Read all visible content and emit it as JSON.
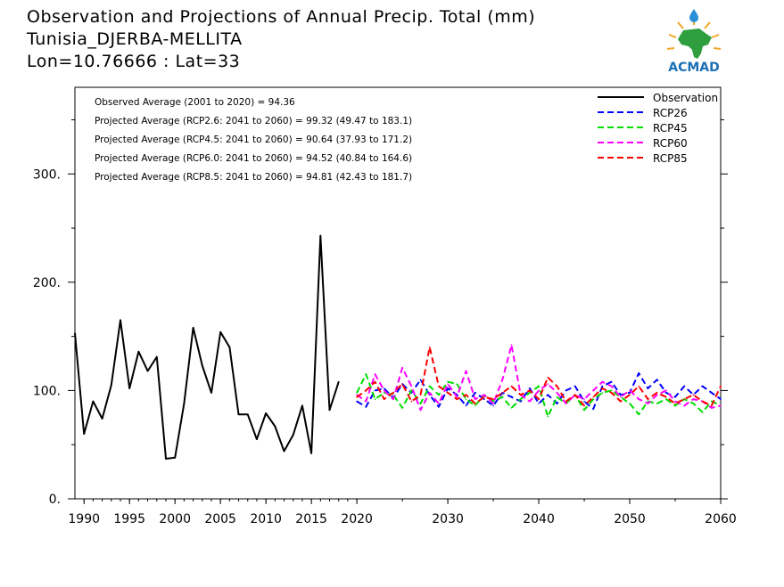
{
  "header": {
    "title": "Observation and Projections of Annual Precip. Total (mm)",
    "station": "Tunisia_DJERBA-MELLITA",
    "coords": "Lon=10.76666 : Lat=33"
  },
  "logo": {
    "text": "ACMAD",
    "colors": {
      "africa": "#2e9e3f",
      "sun": "#f2a623",
      "text": "#1b6fb3",
      "drop": "#2a8fd6"
    }
  },
  "annotations": [
    "Observed Average (2001 to 2020) = 94.36",
    "Projected Average (RCP2.6: 2041 to 2060) = 99.32 (49.47 to 183.1)",
    "Projected Average (RCP4.5: 2041 to 2060) = 90.64 (37.93 to 171.2)",
    "Projected Average (RCP6.0: 2041 to 2060) = 94.52 (40.84 to 164.6)",
    "Projected Average (RCP8.5: 2041 to 2060) = 94.81 (42.43 to 181.7)"
  ],
  "chart_data": {
    "type": "line",
    "xlim": [
      1989,
      2060
    ],
    "ylim": [
      0,
      380
    ],
    "x_ticks": [
      "1990",
      "1995",
      "2000",
      "2005",
      "2010",
      "2015",
      "2020",
      "2030",
      "2040",
      "2050",
      "2060"
    ],
    "y_ticks": [
      "0.",
      "100.",
      "200.",
      "300."
    ],
    "legend_position": "top-right",
    "grid": false,
    "series": [
      {
        "name": "Observation",
        "color": "#000000",
        "dashed": false,
        "x": [
          1989,
          1990,
          1991,
          1992,
          1993,
          1994,
          1995,
          1996,
          1997,
          1998,
          1999,
          2000,
          2001,
          2002,
          2003,
          2004,
          2005,
          2006,
          2007,
          2008,
          2009,
          2010,
          2011,
          2012,
          2013,
          2014,
          2015,
          2016,
          2017,
          2018,
          2019
        ],
        "values": [
          153,
          60,
          90,
          74,
          105,
          165,
          102,
          136,
          118,
          131,
          37,
          38,
          88,
          158,
          123,
          98,
          154,
          140,
          78,
          78,
          55,
          79,
          67,
          44,
          59,
          86,
          42,
          243,
          82,
          108,
          null
        ]
      },
      {
        "name": "RCP26",
        "color": "#0000ff",
        "dashed": true,
        "x": [
          2020,
          2021,
          2022,
          2023,
          2024,
          2025,
          2026,
          2027,
          2028,
          2029,
          2030,
          2031,
          2032,
          2033,
          2034,
          2035,
          2036,
          2037,
          2038,
          2039,
          2040,
          2041,
          2042,
          2043,
          2044,
          2045,
          2046,
          2047,
          2048,
          2049,
          2050,
          2051,
          2052,
          2053,
          2054,
          2055,
          2056,
          2057,
          2058,
          2059,
          2060
        ],
        "values": [
          90,
          85,
          100,
          102,
          93,
          106,
          98,
          110,
          96,
          85,
          102,
          96,
          86,
          98,
          92,
          86,
          98,
          94,
          90,
          102,
          88,
          96,
          88,
          100,
          104,
          90,
          83,
          104,
          108,
          96,
          98,
          116,
          102,
          110,
          98,
          94,
          104,
          96,
          104,
          98,
          92
        ]
      },
      {
        "name": "RCP45",
        "color": "#00dd00",
        "dashed": true,
        "x": [
          2020,
          2021,
          2022,
          2023,
          2024,
          2025,
          2026,
          2027,
          2028,
          2029,
          2030,
          2031,
          2032,
          2033,
          2034,
          2035,
          2036,
          2037,
          2038,
          2039,
          2040,
          2041,
          2042,
          2043,
          2044,
          2045,
          2046,
          2047,
          2048,
          2049,
          2050,
          2051,
          2052,
          2053,
          2054,
          2055,
          2056,
          2057,
          2058,
          2059,
          2060
        ],
        "values": [
          98,
          115,
          92,
          98,
          96,
          84,
          100,
          88,
          104,
          96,
          108,
          106,
          92,
          86,
          96,
          90,
          94,
          84,
          92,
          98,
          104,
          76,
          94,
          88,
          96,
          82,
          92,
          98,
          100,
          94,
          88,
          78,
          90,
          88,
          92,
          86,
          92,
          88,
          80,
          90,
          86
        ]
      },
      {
        "name": "RCP60",
        "color": "#ff00ff",
        "dashed": true,
        "x": [
          2020,
          2021,
          2022,
          2023,
          2024,
          2025,
          2026,
          2027,
          2028,
          2029,
          2030,
          2031,
          2032,
          2033,
          2034,
          2035,
          2036,
          2037,
          2038,
          2039,
          2040,
          2041,
          2042,
          2043,
          2044,
          2045,
          2046,
          2047,
          2048,
          2049,
          2050,
          2051,
          2052,
          2053,
          2054,
          2055,
          2056,
          2057,
          2058,
          2059,
          2060
        ],
        "values": [
          96,
          90,
          115,
          100,
          92,
          121,
          104,
          82,
          98,
          88,
          106,
          94,
          118,
          92,
          96,
          88,
          110,
          142,
          96,
          90,
          100,
          106,
          98,
          88,
          96,
          92,
          100,
          108,
          104,
          94,
          100,
          92,
          88,
          96,
          100,
          90,
          86,
          92,
          90,
          84,
          86
        ]
      },
      {
        "name": "RCP85",
        "color": "#ff0000",
        "dashed": true,
        "x": [
          2020,
          2021,
          2022,
          2023,
          2024,
          2025,
          2026,
          2027,
          2028,
          2029,
          2030,
          2031,
          2032,
          2033,
          2034,
          2035,
          2036,
          2037,
          2038,
          2039,
          2040,
          2041,
          2042,
          2043,
          2044,
          2045,
          2046,
          2047,
          2048,
          2049,
          2050,
          2051,
          2052,
          2053,
          2054,
          2055,
          2056,
          2057,
          2058,
          2059,
          2060
        ],
        "values": [
          94,
          100,
          108,
          92,
          98,
          106,
          90,
          96,
          140,
          104,
          98,
          92,
          96,
          88,
          94,
          92,
          98,
          104,
          96,
          100,
          92,
          112,
          104,
          90,
          96,
          86,
          94,
          102,
          98,
          90,
          96,
          104,
          92,
          98,
          94,
          88,
          92,
          96,
          90,
          86,
          104
        ]
      }
    ]
  }
}
